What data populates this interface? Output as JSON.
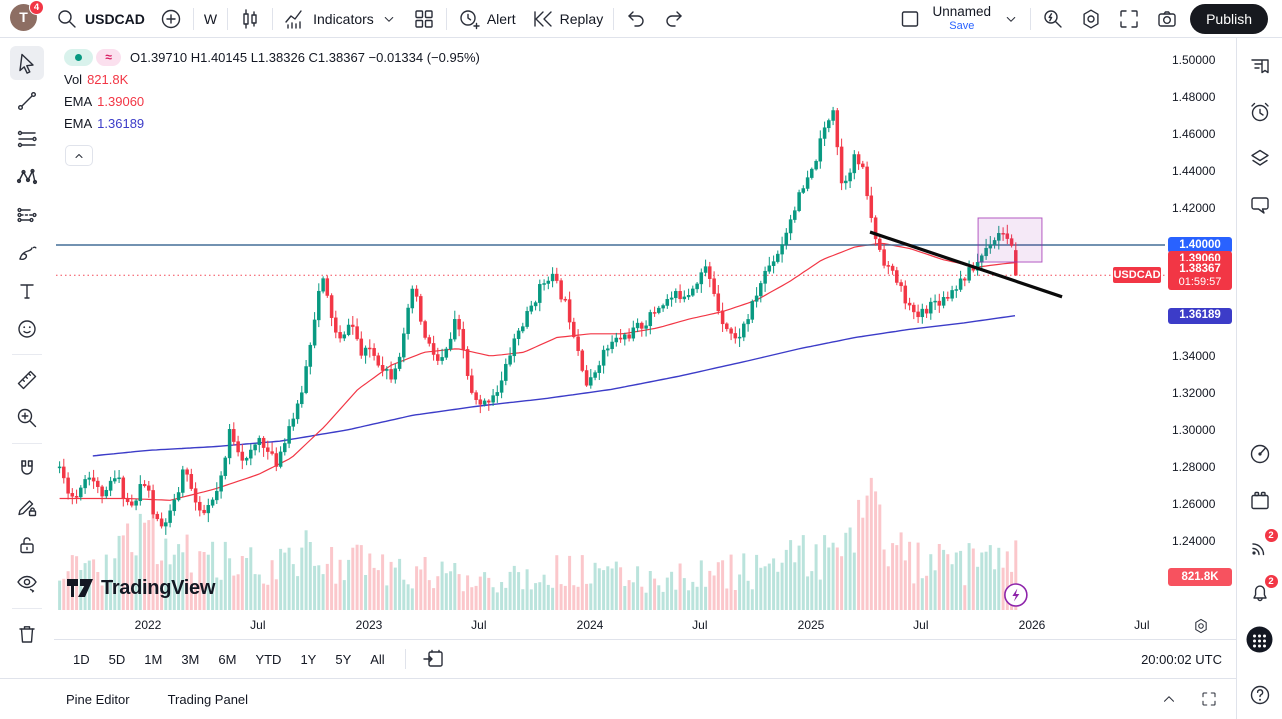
{
  "topbar": {
    "avatar_letter": "T",
    "avatar_badge": "4",
    "symbol": "USDCAD",
    "interval": "W",
    "indicators_label": "Indicators",
    "alert_label": "Alert",
    "replay_label": "Replay",
    "layout_name": "Unnamed",
    "save_label": "Save",
    "publish_label": "Publish"
  },
  "legend": {
    "ohlc_display": "O1.39710 H1.40145 L1.38326 C1.38367 −0.01334 (−0.95%)",
    "approx_glyph": "≈",
    "vol_label": "Vol",
    "vol_value": "821.8K",
    "ema1_label": "EMA",
    "ema1_value": "1.39060",
    "ema2_label": "EMA",
    "ema2_value": "1.36189"
  },
  "watermark_text": "TradingView",
  "price_scale": {
    "ticks": [
      {
        "p": 1.5,
        "label": "1.50000"
      },
      {
        "p": 1.48,
        "label": "1.48000"
      },
      {
        "p": 1.46,
        "label": "1.46000"
      },
      {
        "p": 1.44,
        "label": "1.44000"
      },
      {
        "p": 1.42,
        "label": "1.42000"
      },
      {
        "p": 1.34,
        "label": "1.34000"
      },
      {
        "p": 1.32,
        "label": "1.32000"
      },
      {
        "p": 1.3,
        "label": "1.30000"
      },
      {
        "p": 1.28,
        "label": "1.28000"
      },
      {
        "p": 1.26,
        "label": "1.26000"
      },
      {
        "p": 1.24,
        "label": "1.24000"
      }
    ],
    "pills": [
      {
        "id": "hline",
        "p": 1.4,
        "text": "1.40000",
        "bg": "#2962ff",
        "h": 16
      },
      {
        "id": "ema_fast",
        "p": 1.3906,
        "text": "1.39060",
        "bg": "#f23645",
        "h": 16
      },
      {
        "id": "last",
        "p": 1.38367,
        "text": "1.38367",
        "sub": "01:59:57",
        "bg": "#f23645",
        "h": 29
      },
      {
        "id": "ema_slow",
        "p": 1.36189,
        "text": "1.36189",
        "bg": "#3c3cc8",
        "h": 16
      },
      {
        "id": "volume",
        "y": 530,
        "text": "821.8K",
        "bg": "#f7525f",
        "h": 18
      }
    ],
    "symbol_tag": "USDCAD"
  },
  "time_axis": {
    "labels": [
      {
        "t": 2022.0,
        "text": "2022"
      },
      {
        "t": 2022.497,
        "text": "Jul"
      },
      {
        "t": 2023.0,
        "text": "2023"
      },
      {
        "t": 2023.497,
        "text": "Jul"
      },
      {
        "t": 2024.0,
        "text": "2024"
      },
      {
        "t": 2024.497,
        "text": "Jul"
      },
      {
        "t": 2025.0,
        "text": "2025"
      },
      {
        "t": 2025.497,
        "text": "Jul"
      },
      {
        "t": 2026.0,
        "text": "2026"
      },
      {
        "t": 2026.497,
        "text": "Jul"
      }
    ]
  },
  "toolbar_bottom": {
    "ranges": [
      "1D",
      "5D",
      "1M",
      "3M",
      "6M",
      "YTD",
      "1Y",
      "5Y",
      "All"
    ],
    "clock": "20:00:02 UTC"
  },
  "bottom_panel": {
    "tabs": [
      "Pine Editor",
      "Trading Panel"
    ]
  },
  "sidebar_badges": {
    "streams": "2",
    "notifications": "2"
  },
  "colors": {
    "up": "#089981",
    "down": "#f23645",
    "vol_up": "rgba(8,153,129,0.28)",
    "vol_down": "rgba(242,54,69,0.28)",
    "ema_fast": "#f23645",
    "ema_slow": "#3c3cc8",
    "hline": "#436e97",
    "last_line": "#f23645",
    "trendline": "#0a0a0a",
    "box": "#9c27b0",
    "accent": "#2962ff"
  },
  "chart_data": {
    "type": "candlestick",
    "symbol": "USDCAD",
    "interval": "W",
    "ylim": [
      1.2376,
      1.5012
    ],
    "x_domain": {
      "t_start": 2021.6,
      "t_end": 2025.946,
      "candles_per_year": 52
    },
    "last_candle": {
      "o": 1.3971,
      "h": 1.40145,
      "l": 1.38326,
      "c": 1.38367,
      "change": -0.01334,
      "change_pct": -0.95,
      "volume_label": "821.8K"
    },
    "ema_fast_value": 1.3906,
    "ema_slow_value": 1.36189,
    "close_anchors": [
      [
        2021.6,
        1.28
      ],
      [
        2021.63,
        1.27
      ],
      [
        2021.67,
        1.262
      ],
      [
        2021.7,
        1.272
      ],
      [
        2021.74,
        1.277
      ],
      [
        2021.77,
        1.268
      ],
      [
        2021.81,
        1.264
      ],
      [
        2021.84,
        1.274
      ],
      [
        2021.87,
        1.272
      ],
      [
        2021.9,
        1.262
      ],
      [
        2021.94,
        1.258
      ],
      [
        2021.97,
        1.272
      ],
      [
        2022.0,
        1.268
      ],
      [
        2022.03,
        1.252
      ],
      [
        2022.06,
        1.247
      ],
      [
        2022.11,
        1.256
      ],
      [
        2022.14,
        1.268
      ],
      [
        2022.17,
        1.282
      ],
      [
        2022.2,
        1.266
      ],
      [
        2022.24,
        1.252
      ],
      [
        2022.27,
        1.258
      ],
      [
        2022.3,
        1.262
      ],
      [
        2022.34,
        1.276
      ],
      [
        2022.37,
        1.3
      ],
      [
        2022.41,
        1.29
      ],
      [
        2022.44,
        1.282
      ],
      [
        2022.47,
        1.288
      ],
      [
        2022.51,
        1.297
      ],
      [
        2022.54,
        1.288
      ],
      [
        2022.58,
        1.282
      ],
      [
        2022.61,
        1.292
      ],
      [
        2022.64,
        1.303
      ],
      [
        2022.68,
        1.312
      ],
      [
        2022.71,
        1.33
      ],
      [
        2022.74,
        1.352
      ],
      [
        2022.77,
        1.373
      ],
      [
        2022.79,
        1.381
      ],
      [
        2022.81,
        1.372
      ],
      [
        2022.85,
        1.352
      ],
      [
        2022.88,
        1.346
      ],
      [
        2022.91,
        1.36
      ],
      [
        2022.94,
        1.352
      ],
      [
        2022.97,
        1.338
      ],
      [
        2023.0,
        1.345
      ],
      [
        2023.05,
        1.336
      ],
      [
        2023.1,
        1.33
      ],
      [
        2023.14,
        1.342
      ],
      [
        2023.17,
        1.355
      ],
      [
        2023.19,
        1.378
      ],
      [
        2023.22,
        1.368
      ],
      [
        2023.25,
        1.35
      ],
      [
        2023.28,
        1.344
      ],
      [
        2023.32,
        1.335
      ],
      [
        2023.36,
        1.345
      ],
      [
        2023.39,
        1.358
      ],
      [
        2023.42,
        1.348
      ],
      [
        2023.46,
        1.32
      ],
      [
        2023.5,
        1.312
      ],
      [
        2023.53,
        1.315
      ],
      [
        2023.56,
        1.32
      ],
      [
        2023.59,
        1.322
      ],
      [
        2023.63,
        1.338
      ],
      [
        2023.66,
        1.35
      ],
      [
        2023.7,
        1.358
      ],
      [
        2023.74,
        1.368
      ],
      [
        2023.78,
        1.378
      ],
      [
        2023.82,
        1.385
      ],
      [
        2023.85,
        1.378
      ],
      [
        2023.89,
        1.368
      ],
      [
        2023.93,
        1.352
      ],
      [
        2023.96,
        1.338
      ],
      [
        2023.99,
        1.322
      ],
      [
        2024.05,
        1.34
      ],
      [
        2024.11,
        1.348
      ],
      [
        2024.18,
        1.352
      ],
      [
        2024.25,
        1.358
      ],
      [
        2024.32,
        1.368
      ],
      [
        2024.38,
        1.372
      ],
      [
        2024.45,
        1.375
      ],
      [
        2024.52,
        1.388
      ],
      [
        2024.56,
        1.375
      ],
      [
        2024.59,
        1.362
      ],
      [
        2024.66,
        1.348
      ],
      [
        2024.72,
        1.362
      ],
      [
        2024.79,
        1.385
      ],
      [
        2024.86,
        1.398
      ],
      [
        2024.93,
        1.422
      ],
      [
        2025.0,
        1.438
      ],
      [
        2025.06,
        1.462
      ],
      [
        2025.1,
        1.475
      ],
      [
        2025.14,
        1.432
      ],
      [
        2025.2,
        1.448
      ],
      [
        2025.24,
        1.438
      ],
      [
        2025.28,
        1.408
      ],
      [
        2025.33,
        1.392
      ],
      [
        2025.4,
        1.378
      ],
      [
        2025.47,
        1.36
      ],
      [
        2025.54,
        1.368
      ],
      [
        2025.61,
        1.372
      ],
      [
        2025.67,
        1.38
      ],
      [
        2025.74,
        1.388
      ],
      [
        2025.81,
        1.402
      ],
      [
        2025.87,
        1.408
      ],
      [
        2025.91,
        1.397
      ],
      [
        2025.946,
        1.38367
      ]
    ],
    "ema_fast_anchors": [
      [
        2021.6,
        1.263
      ],
      [
        2021.9,
        1.263
      ],
      [
        2022.1,
        1.262
      ],
      [
        2022.3,
        1.268
      ],
      [
        2022.5,
        1.276
      ],
      [
        2022.65,
        1.285
      ],
      [
        2022.8,
        1.302
      ],
      [
        2022.95,
        1.322
      ],
      [
        2023.1,
        1.335
      ],
      [
        2023.25,
        1.342
      ],
      [
        2023.4,
        1.344
      ],
      [
        2023.55,
        1.34
      ],
      [
        2023.7,
        1.342
      ],
      [
        2023.85,
        1.35
      ],
      [
        2024.0,
        1.352
      ],
      [
        2024.15,
        1.352
      ],
      [
        2024.3,
        1.355
      ],
      [
        2024.45,
        1.36
      ],
      [
        2024.6,
        1.364
      ],
      [
        2024.75,
        1.37
      ],
      [
        2024.9,
        1.38
      ],
      [
        2025.05,
        1.392
      ],
      [
        2025.2,
        1.399
      ],
      [
        2025.32,
        1.401
      ],
      [
        2025.45,
        1.398
      ],
      [
        2025.6,
        1.392
      ],
      [
        2025.75,
        1.388
      ],
      [
        2025.88,
        1.39
      ],
      [
        2025.946,
        1.3906
      ]
    ],
    "ema_slow_anchors": [
      [
        2021.75,
        1.286
      ],
      [
        2022.0,
        1.289
      ],
      [
        2022.3,
        1.291
      ],
      [
        2022.6,
        1.294
      ],
      [
        2022.9,
        1.3
      ],
      [
        2023.2,
        1.308
      ],
      [
        2023.5,
        1.313
      ],
      [
        2023.8,
        1.317
      ],
      [
        2024.1,
        1.322
      ],
      [
        2024.4,
        1.329
      ],
      [
        2024.7,
        1.337
      ],
      [
        2024.95,
        1.344
      ],
      [
        2025.2,
        1.35
      ],
      [
        2025.45,
        1.3545
      ],
      [
        2025.7,
        1.358
      ],
      [
        2025.93,
        1.3619
      ]
    ],
    "volume_anchors": [
      [
        2021.6,
        50
      ],
      [
        2021.8,
        42
      ],
      [
        2022.0,
        75
      ],
      [
        2022.1,
        60
      ],
      [
        2022.3,
        48
      ],
      [
        2022.5,
        44
      ],
      [
        2022.77,
        58
      ],
      [
        2022.9,
        48
      ],
      [
        2023.1,
        40
      ],
      [
        2023.3,
        36
      ],
      [
        2023.5,
        34
      ],
      [
        2023.7,
        36
      ],
      [
        2023.9,
        40
      ],
      [
        2024.1,
        34
      ],
      [
        2024.3,
        33
      ],
      [
        2024.5,
        36
      ],
      [
        2024.7,
        40
      ],
      [
        2024.9,
        48
      ],
      [
        2025.05,
        58
      ],
      [
        2025.2,
        60
      ],
      [
        2025.27,
        145
      ],
      [
        2025.35,
        60
      ],
      [
        2025.5,
        48
      ],
      [
        2025.65,
        44
      ],
      [
        2025.8,
        50
      ],
      [
        2025.946,
        55
      ]
    ],
    "drawings": {
      "hline": {
        "p": 1.4
      },
      "last_price_line": {
        "p": 1.38367,
        "style": "dotted"
      },
      "trendline": {
        "t1": 2025.267,
        "p1": 1.407,
        "t2": 2026.136,
        "p2": 1.372
      },
      "box": {
        "t1": 2025.756,
        "p1": 1.4146,
        "t2": 2026.045,
        "p2": 1.3908
      },
      "bolt_marker": {
        "t": 2025.927
      }
    }
  }
}
